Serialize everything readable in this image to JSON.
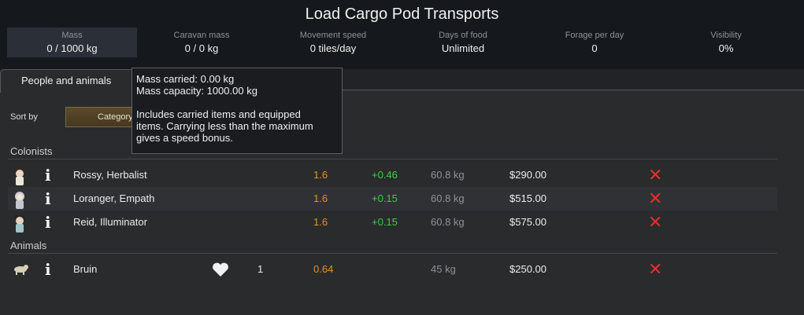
{
  "window": {
    "title": "Load Cargo Pod Transports"
  },
  "stats": [
    {
      "label": "Mass",
      "value": "0 / 1000 kg"
    },
    {
      "label": "Caravan mass",
      "value": "0 / 0 kg"
    },
    {
      "label": "Movement speed",
      "value": "0 tiles/day"
    },
    {
      "label": "Days of food",
      "value": "Unlimited"
    },
    {
      "label": "Forage per day",
      "value": "0"
    },
    {
      "label": "Visibility",
      "value": "0%"
    }
  ],
  "tabs": {
    "people_animals": "People and animals"
  },
  "sort": {
    "label": "Sort by",
    "button": "Category"
  },
  "sections": {
    "colonists": "Colonists",
    "animals": "Animals"
  },
  "colonists": [
    {
      "name": "Rossy, Herbalist",
      "speed": "1.6",
      "bonus": "+0.46",
      "mass": "60.8 kg",
      "value": "$290.00"
    },
    {
      "name": "Loranger, Empath",
      "speed": "1.6",
      "bonus": "+0.15",
      "mass": "60.8 kg",
      "value": "$515.00"
    },
    {
      "name": "Reid, Illuminator",
      "speed": "1.6",
      "bonus": "+0.15",
      "mass": "60.8 kg",
      "value": "$575.00"
    }
  ],
  "animals": [
    {
      "name": "Bruin",
      "count": "1",
      "speed": "0.64",
      "mass": "45 kg",
      "value": "$250.00"
    }
  ],
  "tooltip": {
    "line1": "Mass carried: 0.00 kg",
    "line2": "Mass capacity: 1000.00 kg",
    "line3": "Includes carried items and equipped",
    "line4": "items. Carrying less than the maximum",
    "line5": "gives a speed bonus."
  },
  "glyphs": {
    "info": "i",
    "remove": "✕"
  },
  "colors": {
    "speed": "#e8912b",
    "bonus": "#3fcc46",
    "remove": "#e0302a"
  }
}
